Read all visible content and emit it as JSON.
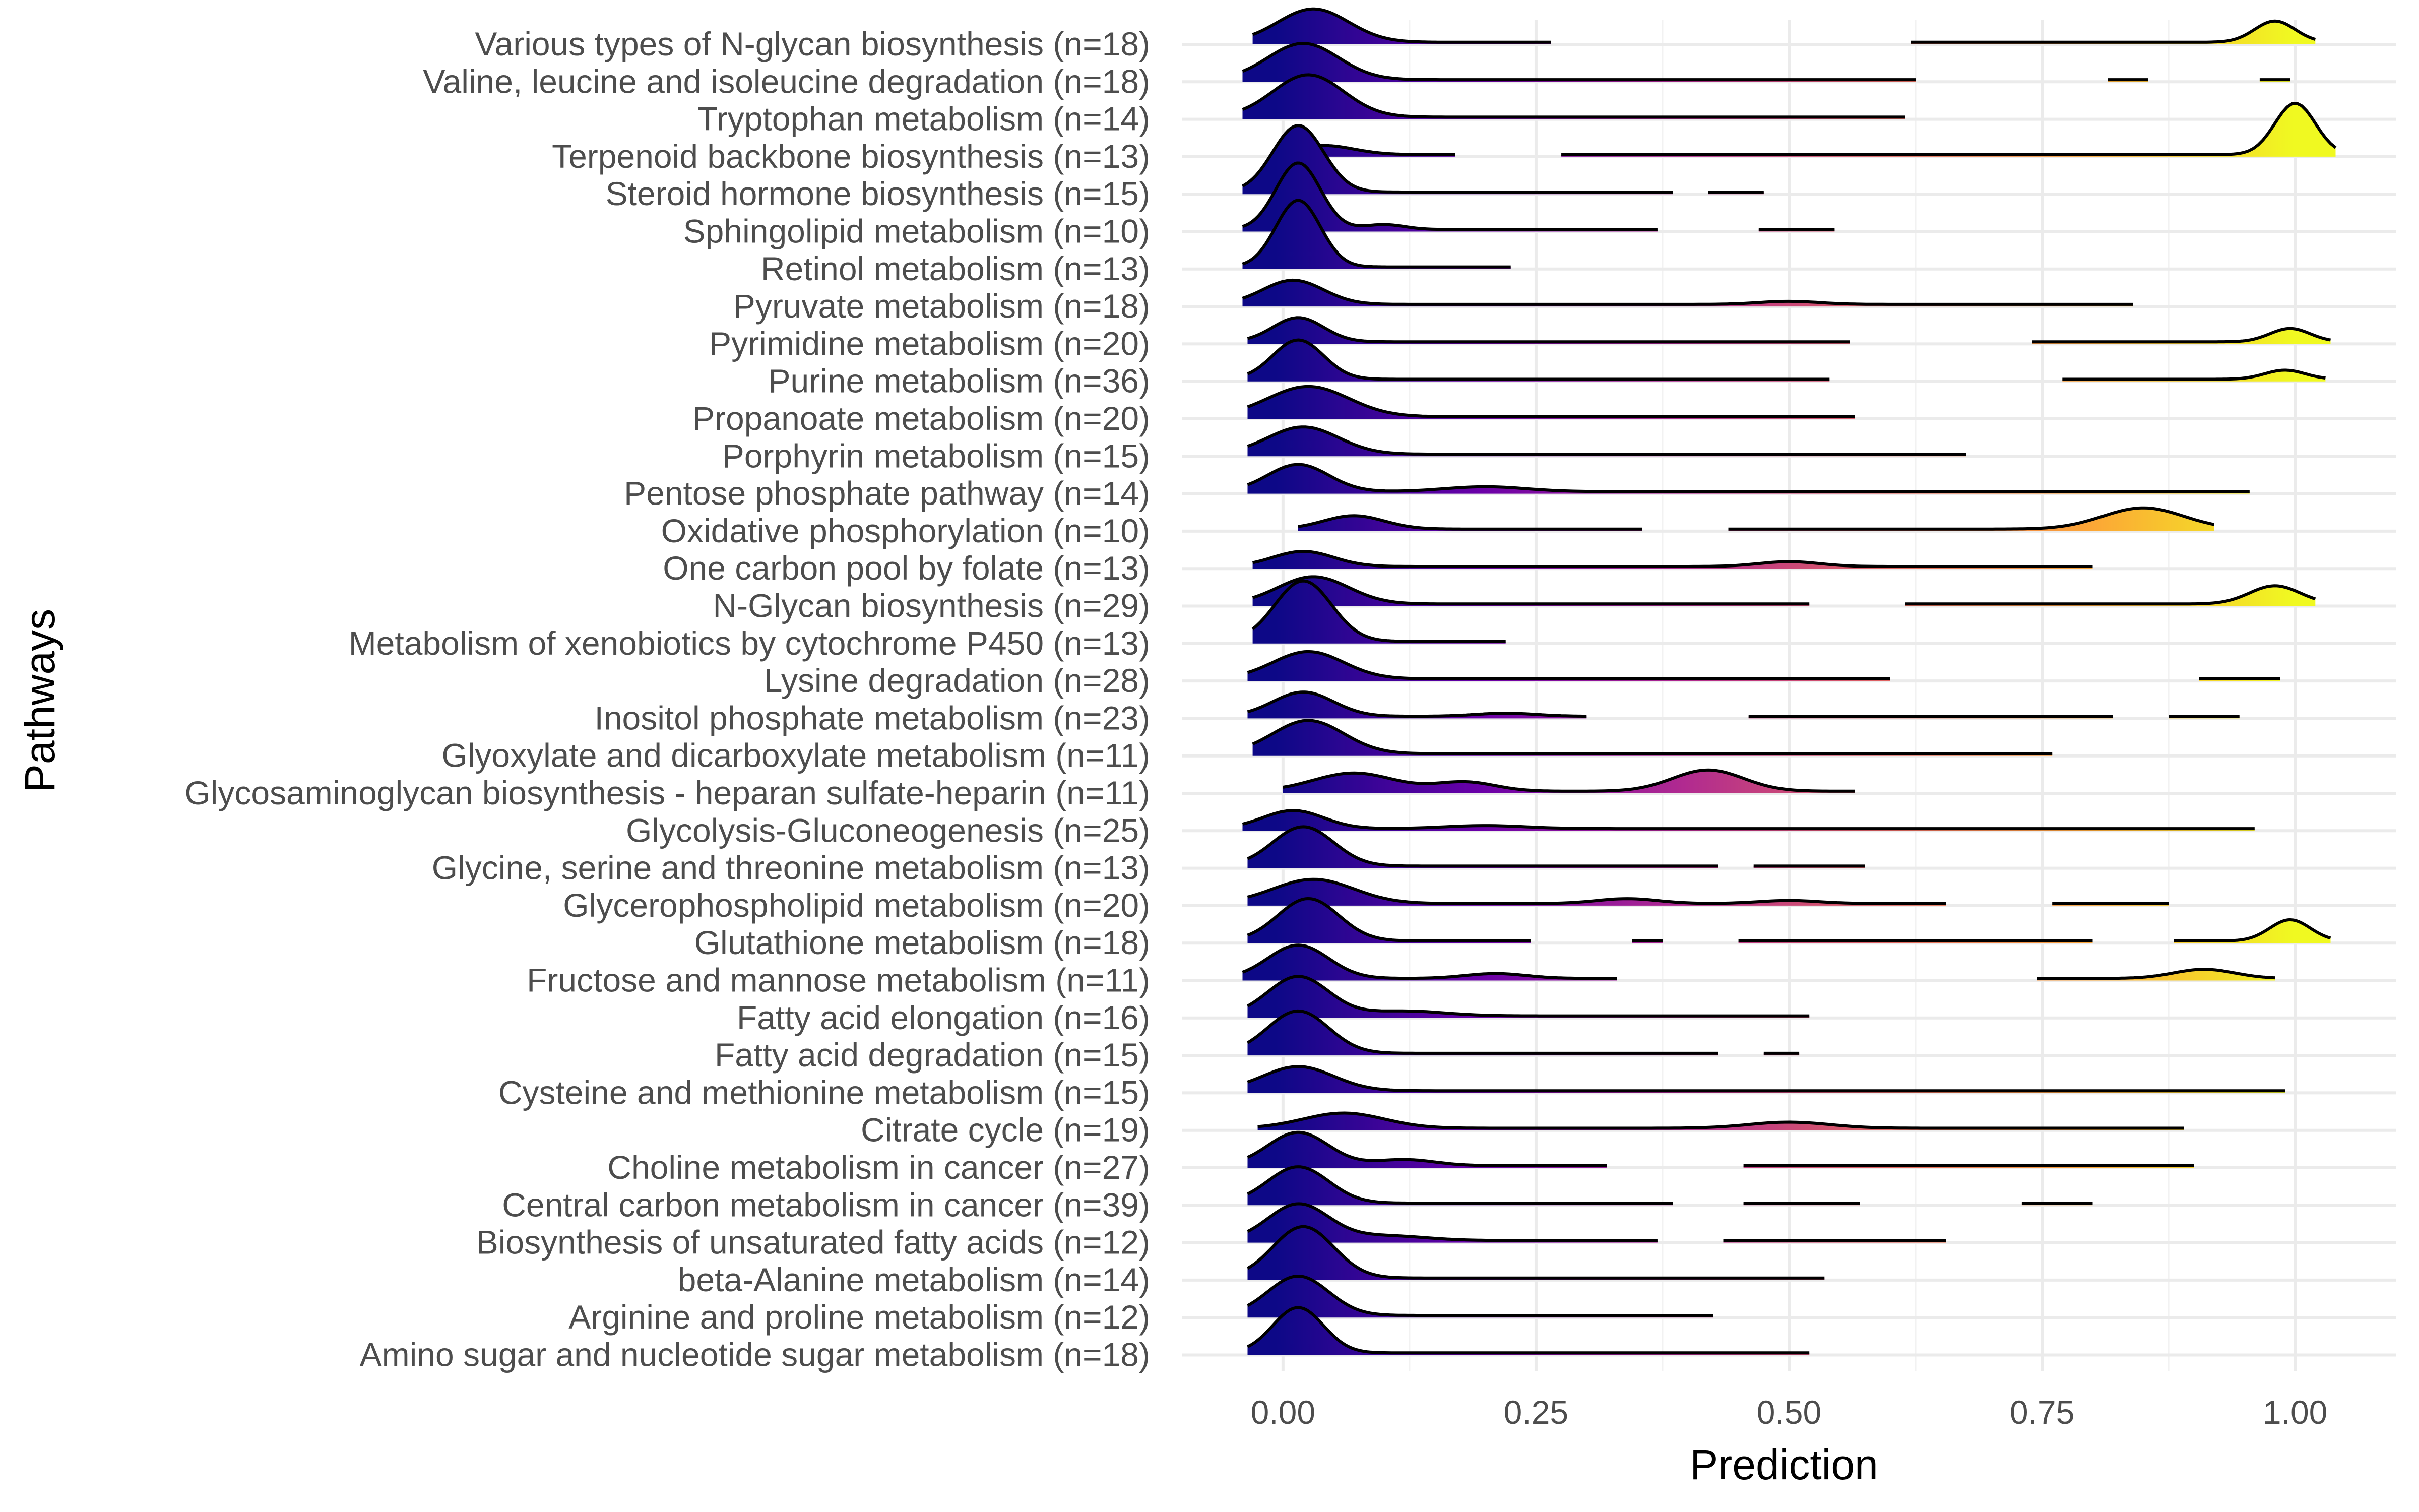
{
  "chart_data": {
    "type": "ridgeline",
    "xlabel": "Prediction",
    "ylabel": "Pathways",
    "xlim": [
      -0.1,
      1.1
    ],
    "x_ticks": [
      0.0,
      0.25,
      0.5,
      0.75,
      1.0
    ],
    "x_tick_labels": [
      "0.00",
      "0.25",
      "0.50",
      "0.75",
      "1.00"
    ],
    "grid": true,
    "legend": "none",
    "fill_colormap": [
      "#0d0887",
      "#6a00a8",
      "#b12a90",
      "#e16462",
      "#fca636",
      "#f0f921"
    ],
    "categories": [
      "Various types of N-glycan biosynthesis (n=18)",
      "Valine, leucine and isoleucine degradation (n=18)",
      "Tryptophan metabolism (n=14)",
      "Terpenoid backbone biosynthesis (n=13)",
      "Steroid hormone biosynthesis (n=15)",
      "Sphingolipid metabolism (n=10)",
      "Retinol metabolism (n=13)",
      "Pyruvate metabolism (n=18)",
      "Pyrimidine metabolism (n=20)",
      "Purine metabolism (n=36)",
      "Propanoate metabolism (n=20)",
      "Porphyrin metabolism (n=15)",
      "Pentose phosphate pathway (n=14)",
      "Oxidative phosphorylation (n=10)",
      "One carbon pool by folate (n=13)",
      "N-Glycan biosynthesis (n=29)",
      "Metabolism of xenobiotics by cytochrome P450 (n=13)",
      "Lysine degradation (n=28)",
      "Inositol phosphate metabolism (n=23)",
      "Glyoxylate and dicarboxylate metabolism (n=11)",
      "Glycosaminoglycan biosynthesis - heparan sulfate-heparin (n=11)",
      "Glycolysis-Gluconeogenesis (n=25)",
      "Glycine, serine and threonine metabolism (n=13)",
      "Glycerophospholipid metabolism (n=20)",
      "Glutathione metabolism (n=18)",
      "Fructose and mannose metabolism (n=11)",
      "Fatty acid elongation (n=16)",
      "Fatty acid degradation (n=15)",
      "Cysteine and methionine metabolism (n=15)",
      "Citrate cycle (n=19)",
      "Choline metabolism in cancer (n=27)",
      "Central carbon metabolism in cancer (n=39)",
      "Biosynthesis of unsaturated fatty acids (n=12)",
      "beta-Alanine metabolism (n=14)",
      "Arginine and proline metabolism (n=12)",
      "Amino sugar and nucleotide sugar metabolism (n=18)"
    ],
    "series": [
      {
        "segments": [
          [
            -0.03,
            0.265
          ],
          [
            0.62,
            1.02
          ]
        ],
        "peaks": [
          [
            0.03,
            0.55,
            0.035
          ],
          [
            0.98,
            0.35,
            0.02
          ]
        ]
      },
      {
        "segments": [
          [
            -0.04,
            0.625
          ],
          [
            0.815,
            0.855
          ],
          [
            0.965,
            0.995
          ]
        ],
        "peaks": [
          [
            0.02,
            0.6,
            0.035
          ]
        ]
      },
      {
        "segments": [
          [
            -0.04,
            0.615
          ]
        ],
        "peaks": [
          [
            0.025,
            0.7,
            0.035
          ]
        ]
      },
      {
        "segments": [
          [
            0.01,
            0.17
          ],
          [
            0.275,
            1.04
          ]
        ],
        "peaks": [
          [
            0.04,
            0.15,
            0.03
          ],
          [
            1.0,
            0.85,
            0.02
          ]
        ]
      },
      {
        "segments": [
          [
            -0.04,
            0.385
          ],
          [
            0.42,
            0.475
          ]
        ],
        "peaks": [
          [
            0.015,
            1.1,
            0.025
          ]
        ]
      },
      {
        "segments": [
          [
            -0.04,
            0.37
          ],
          [
            0.47,
            0.545
          ]
        ],
        "peaks": [
          [
            0.015,
            1.1,
            0.022
          ],
          [
            0.1,
            0.08,
            0.02
          ]
        ]
      },
      {
        "segments": [
          [
            -0.04,
            0.225
          ]
        ],
        "peaks": [
          [
            0.015,
            1.1,
            0.022
          ]
        ]
      },
      {
        "segments": [
          [
            -0.04,
            0.84
          ]
        ],
        "peaks": [
          [
            0.01,
            0.4,
            0.03
          ],
          [
            0.5,
            0.05,
            0.03
          ]
        ]
      },
      {
        "segments": [
          [
            -0.035,
            0.56
          ],
          [
            0.74,
            1.035
          ]
        ],
        "peaks": [
          [
            0.015,
            0.4,
            0.025
          ],
          [
            0.995,
            0.22,
            0.02
          ]
        ]
      },
      {
        "segments": [
          [
            -0.035,
            0.54
          ],
          [
            0.77,
            1.03
          ]
        ],
        "peaks": [
          [
            0.015,
            0.65,
            0.025
          ],
          [
            0.99,
            0.15,
            0.02
          ]
        ]
      },
      {
        "segments": [
          [
            -0.035,
            0.565
          ]
        ],
        "peaks": [
          [
            0.025,
            0.5,
            0.04
          ]
        ]
      },
      {
        "segments": [
          [
            -0.035,
            0.675
          ]
        ],
        "peaks": [
          [
            0.02,
            0.45,
            0.035
          ]
        ]
      },
      {
        "segments": [
          [
            -0.035,
            0.955
          ]
        ],
        "peaks": [
          [
            0.015,
            0.45,
            0.03
          ],
          [
            0.2,
            0.08,
            0.04
          ]
        ]
      },
      {
        "segments": [
          [
            0.015,
            0.355
          ],
          [
            0.44,
            0.92
          ]
        ],
        "peaks": [
          [
            0.07,
            0.22,
            0.03
          ],
          [
            0.85,
            0.35,
            0.04
          ]
        ]
      },
      {
        "segments": [
          [
            -0.03,
            0.8
          ]
        ],
        "peaks": [
          [
            0.02,
            0.25,
            0.03
          ],
          [
            0.5,
            0.08,
            0.03
          ]
        ]
      },
      {
        "segments": [
          [
            -0.03,
            0.52
          ],
          [
            0.615,
            1.02
          ]
        ],
        "peaks": [
          [
            0.03,
            0.45,
            0.035
          ],
          [
            0.98,
            0.3,
            0.025
          ]
        ]
      },
      {
        "segments": [
          [
            -0.03,
            0.22
          ]
        ],
        "peaks": [
          [
            0.02,
            1.0,
            0.028
          ]
        ]
      },
      {
        "segments": [
          [
            -0.035,
            0.6
          ],
          [
            0.905,
            0.985
          ]
        ],
        "peaks": [
          [
            0.025,
            0.45,
            0.035
          ]
        ]
      },
      {
        "segments": [
          [
            -0.035,
            0.3
          ],
          [
            0.46,
            0.82
          ],
          [
            0.875,
            0.945
          ]
        ],
        "peaks": [
          [
            0.02,
            0.4,
            0.03
          ],
          [
            0.22,
            0.05,
            0.03
          ]
        ]
      },
      {
        "segments": [
          [
            -0.03,
            0.76
          ]
        ],
        "peaks": [
          [
            0.025,
            0.55,
            0.035
          ]
        ]
      },
      {
        "segments": [
          [
            0.0,
            0.565
          ]
        ],
        "peaks": [
          [
            0.07,
            0.3,
            0.04
          ],
          [
            0.18,
            0.15,
            0.03
          ],
          [
            0.42,
            0.35,
            0.035
          ]
        ]
      },
      {
        "segments": [
          [
            -0.04,
            0.96
          ]
        ],
        "peaks": [
          [
            0.01,
            0.3,
            0.03
          ],
          [
            0.2,
            0.05,
            0.04
          ]
        ]
      },
      {
        "segments": [
          [
            -0.035,
            0.43
          ],
          [
            0.465,
            0.575
          ]
        ],
        "peaks": [
          [
            0.02,
            0.65,
            0.03
          ]
        ]
      },
      {
        "segments": [
          [
            -0.035,
            0.655
          ],
          [
            0.76,
            0.875
          ]
        ],
        "peaks": [
          [
            0.03,
            0.4,
            0.04
          ],
          [
            0.34,
            0.08,
            0.03
          ],
          [
            0.5,
            0.05,
            0.03
          ]
        ]
      },
      {
        "segments": [
          [
            -0.035,
            0.245
          ],
          [
            0.345,
            0.375
          ],
          [
            0.45,
            0.8
          ],
          [
            0.88,
            1.035
          ]
        ],
        "peaks": [
          [
            0.025,
            0.7,
            0.03
          ],
          [
            0.995,
            0.35,
            0.02
          ]
        ]
      },
      {
        "segments": [
          [
            -0.04,
            0.33
          ],
          [
            0.745,
            0.98
          ]
        ],
        "peaks": [
          [
            0.015,
            0.55,
            0.03
          ],
          [
            0.21,
            0.08,
            0.03
          ],
          [
            0.91,
            0.15,
            0.03
          ]
        ]
      },
      {
        "segments": [
          [
            -0.035,
            0.52
          ]
        ],
        "peaks": [
          [
            0.015,
            0.65,
            0.03
          ],
          [
            0.12,
            0.08,
            0.04
          ]
        ]
      },
      {
        "segments": [
          [
            -0.035,
            0.43
          ],
          [
            0.475,
            0.51
          ]
        ],
        "peaks": [
          [
            0.015,
            0.7,
            0.03
          ]
        ]
      },
      {
        "segments": [
          [
            -0.035,
            0.99
          ]
        ],
        "peaks": [
          [
            0.015,
            0.4,
            0.035
          ]
        ]
      },
      {
        "segments": [
          [
            -0.025,
            0.89
          ]
        ],
        "peaks": [
          [
            0.06,
            0.25,
            0.04
          ],
          [
            0.5,
            0.1,
            0.04
          ]
        ]
      },
      {
        "segments": [
          [
            -0.035,
            0.32
          ],
          [
            0.455,
            0.9
          ]
        ],
        "peaks": [
          [
            0.015,
            0.55,
            0.03
          ],
          [
            0.12,
            0.1,
            0.03
          ]
        ]
      },
      {
        "segments": [
          [
            -0.035,
            0.385
          ],
          [
            0.455,
            0.57
          ],
          [
            0.73,
            0.8
          ]
        ],
        "peaks": [
          [
            0.015,
            0.6,
            0.03
          ]
        ]
      },
      {
        "segments": [
          [
            -0.035,
            0.37
          ],
          [
            0.435,
            0.655
          ]
        ],
        "peaks": [
          [
            0.015,
            0.6,
            0.03
          ],
          [
            0.1,
            0.08,
            0.04
          ]
        ]
      },
      {
        "segments": [
          [
            -0.035,
            0.535
          ]
        ],
        "peaks": [
          [
            0.02,
            0.85,
            0.03
          ]
        ]
      },
      {
        "segments": [
          [
            -0.035,
            0.425
          ]
        ],
        "peaks": [
          [
            0.015,
            0.65,
            0.03
          ]
        ]
      },
      {
        "segments": [
          [
            -0.035,
            0.52
          ]
        ],
        "peaks": [
          [
            0.015,
            0.75,
            0.025
          ]
        ]
      }
    ]
  }
}
